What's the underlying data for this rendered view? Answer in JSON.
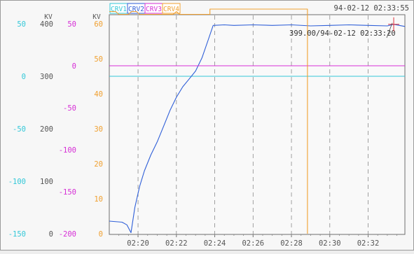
{
  "header": {
    "channels": [
      {
        "label": "CRV1",
        "color": "#33c8d8"
      },
      {
        "label": "CRV2",
        "color": "#2f5fd8"
      },
      {
        "label": "CRV3",
        "color": "#d62fd6"
      },
      {
        "label": "CRV4",
        "color": "#f0a030"
      }
    ],
    "datetime": "94-02-12 02:33:55"
  },
  "readout": "399.00/94-02-12 02:33:20",
  "chart_data": {
    "type": "line",
    "grid": true,
    "x": {
      "ticks": [
        "02:20",
        "02:22",
        "02:24",
        "02:26",
        "02:28",
        "02:30",
        "02:32"
      ],
      "range": [
        "02:18:30",
        "02:33:55"
      ]
    },
    "axes": [
      {
        "id": "crv1",
        "unit": "",
        "color": "#33c8d8",
        "range": [
          -150,
          50
        ],
        "ticks": [
          50,
          0,
          -50,
          -100,
          -150
        ]
      },
      {
        "id": "crv2",
        "unit": "KV",
        "color": "#555555",
        "range": [
          0,
          400
        ],
        "ticks": [
          400,
          300,
          200,
          100,
          0
        ]
      },
      {
        "id": "crv3",
        "unit": "",
        "color": "#d62fd6",
        "range": [
          -200,
          50
        ],
        "ticks": [
          50,
          0,
          -50,
          -100,
          -150,
          -200
        ]
      },
      {
        "id": "crv4",
        "unit": "KV",
        "color": "#f0a030",
        "range": [
          0,
          60
        ],
        "ticks": [
          60,
          50,
          40,
          30,
          20,
          10,
          0
        ]
      }
    ],
    "series": [
      {
        "name": "CRV1",
        "axis": "crv1",
        "color": "#33c8d8",
        "points": [
          [
            "02:18:30",
            0
          ],
          [
            "02:33:55",
            0
          ]
        ]
      },
      {
        "name": "CRV2",
        "axis": "crv2",
        "color": "#2f5fd8",
        "points": [
          [
            "02:18:30",
            24
          ],
          [
            "02:19:10",
            22
          ],
          [
            "02:19:25",
            17
          ],
          [
            "02:19:38",
            2
          ],
          [
            "02:19:50",
            50
          ],
          [
            "02:20:05",
            90
          ],
          [
            "02:20:20",
            120
          ],
          [
            "02:20:40",
            150
          ],
          [
            "02:21:00",
            175
          ],
          [
            "02:21:20",
            205
          ],
          [
            "02:21:40",
            235
          ],
          [
            "02:22:00",
            260
          ],
          [
            "02:22:20",
            280
          ],
          [
            "02:22:40",
            295
          ],
          [
            "02:23:00",
            310
          ],
          [
            "02:23:20",
            335
          ],
          [
            "02:23:40",
            370
          ],
          [
            "02:23:55",
            397
          ],
          [
            "02:24:30",
            398
          ],
          [
            "02:25:00",
            397
          ],
          [
            "02:26:00",
            398
          ],
          [
            "02:27:00",
            397
          ],
          [
            "02:28:00",
            398
          ],
          [
            "02:29:00",
            396
          ],
          [
            "02:30:00",
            397
          ],
          [
            "02:31:00",
            398
          ],
          [
            "02:32:00",
            397
          ],
          [
            "02:33:00",
            396
          ],
          [
            "02:33:20",
            399
          ],
          [
            "02:33:55",
            395
          ]
        ]
      },
      {
        "name": "CRV3",
        "axis": "crv3",
        "color": "#d62fd6",
        "points": [
          [
            "02:18:30",
            0
          ],
          [
            "02:33:55",
            0
          ]
        ]
      },
      {
        "name": "CRV4",
        "axis": "crv4",
        "color": "#f0a030",
        "points": [
          [
            "02:18:30",
            63.5
          ],
          [
            "02:18:50",
            63.5
          ],
          [
            "02:19:00",
            62.7
          ],
          [
            "02:19:30",
            62.7
          ],
          [
            "02:19:40",
            63.5
          ],
          [
            "02:19:55",
            63.5
          ],
          [
            "02:20:05",
            62.7
          ],
          [
            "02:21:50",
            62.7
          ],
          [
            "02:22:00",
            63.5
          ],
          [
            "02:22:10",
            62.7
          ],
          [
            "02:23:45",
            62.7
          ],
          [
            "02:23:45",
            64.2
          ],
          [
            "02:28:50",
            64.2
          ],
          [
            "02:28:50",
            0
          ]
        ]
      }
    ]
  }
}
